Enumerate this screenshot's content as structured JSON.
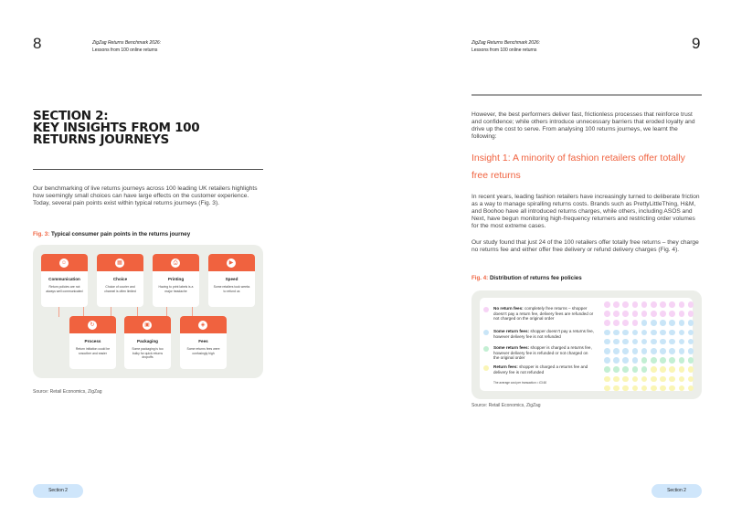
{
  "left_page": {
    "page_number": "8",
    "running_head": {
      "title": "ZigZag Returns Benchmark 2026:",
      "subtitle": "Lessons from 100 online returns"
    },
    "section_title": [
      "SECTION 2:",
      "KEY INSIGHTS FROM 100",
      "RETURNS JOURNEYS"
    ],
    "intro": "Our benchmarking of live returns journeys across 100 leading UK retailers highlights how seemingly small choices can have large effects on the customer experience. Today, several pain points exist within typical returns journeys (Fig. 3).",
    "figure": {
      "number": "Fig. 3:",
      "caption": "Typical consumer pain points in the returns journey",
      "cards": [
        {
          "name": "Communication",
          "desc": "Return policies are not always well communicated",
          "icon": "chat-icon",
          "glyph": "☺"
        },
        {
          "name": "Choice",
          "desc": "Choice of courier and channel is often limited",
          "icon": "grid-icon",
          "glyph": "▦"
        },
        {
          "name": "Printing",
          "desc": "Having to print labels is a major headache",
          "icon": "printer-icon",
          "glyph": "⎙"
        },
        {
          "name": "Speed",
          "desc": "Some retailers took weeks to refund us",
          "icon": "truck-icon",
          "glyph": "▶"
        },
        {
          "name": "Process",
          "desc": "Return initiation could be smoother and easier",
          "icon": "refresh-icon",
          "glyph": "↻"
        },
        {
          "name": "Packaging",
          "desc": "Some packaging is too bulky for quick returns dropoffs",
          "icon": "box-icon",
          "glyph": "▣"
        },
        {
          "name": "Fees",
          "desc": "Some returns fees were confusingly high",
          "icon": "tag-icon",
          "glyph": "◈"
        }
      ],
      "source": "Source: Retail Economics, ZigZag"
    },
    "footer": "Section 2"
  },
  "right_page": {
    "page_number": "9",
    "running_head": {
      "title": "ZigZag Returns Benchmark 2026:",
      "subtitle": "Lessons from 100 online returns"
    },
    "intro": "However, the best performers deliver fast, frictionless processes that reinforce trust and confidence; while others introduce unnecessary barriers that eroded loyalty and drive up the cost to serve. From analysing 100 returns journeys, we learnt the following:",
    "insight_heading": "Insight 1: A minority of fashion retailers offer totally free returns",
    "para1": "In recent years, leading fashion retailers have increasingly turned to deliberate friction as a way to manage spiralling returns costs. Brands such as PrettyLittleThing, H&M, and Boohoo have all introduced returns charges, while others, including ASOS and Next, have begun monitoring high-frequency returners and restricting order volumes for the most extreme cases.",
    "para2": "Our study found that just 24 of the 100 retailers offer totally free returns – they charge no returns fee and either offer free delivery or refund delivery charges (Fig. 4).",
    "figure": {
      "number": "Fig. 4:",
      "caption": "Distribution of returns fee policies",
      "legend": [
        {
          "label": "No return fees:",
          "desc": "completely free returns – shopper doesn't pay a return fee, delivery fees are refunded or not charged on the original order",
          "color": "#f6d3f5",
          "count": 24
        },
        {
          "label": "Some return fees:",
          "desc": "shopper doesn't pay a returns fee, however delivery fee is not refunded",
          "color": "#c9e5f7",
          "count": 40
        },
        {
          "label": "Some return fees:",
          "desc": "shopper is charged a returns fee, however delivery fee is refunded or not charged on the original order",
          "color": "#c3efd3",
          "count": 11
        },
        {
          "label": "Return fees:",
          "desc": "shopper is charged a returns fee and delivery fee is not refunded",
          "color": "#faf5b5",
          "count": 25
        }
      ],
      "note": "The average cost per transaction = £3.60",
      "source": "Source: Retail Economics, ZigZag"
    },
    "footer": "Section 2"
  },
  "colors": {
    "accent": "#f0623f",
    "panel": "#eceee9",
    "pill": "#cfe6fb"
  }
}
